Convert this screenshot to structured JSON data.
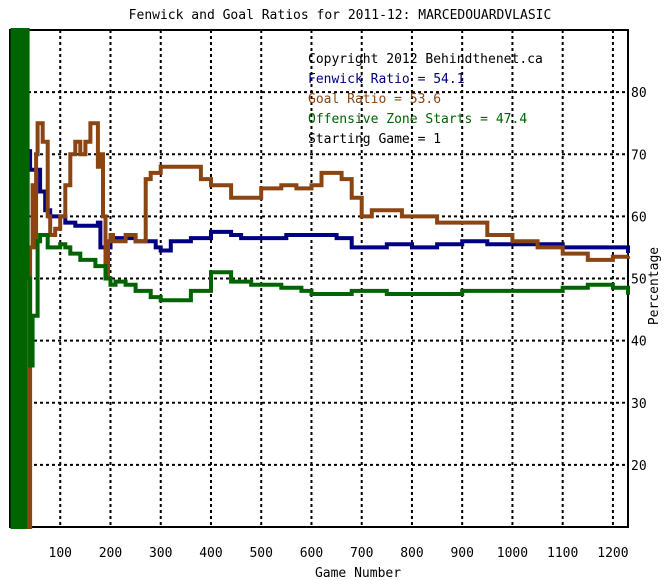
{
  "chart_data": {
    "type": "line",
    "title": "Fenwick and Goal Ratios for 2011-12: MARCEDOUARDVLASIC",
    "xlabel": "Game Number",
    "ylabel": "Percentage",
    "xlim": [
      0,
      1230
    ],
    "ylim": [
      10,
      90
    ],
    "x_ticks": [
      100,
      200,
      300,
      400,
      500,
      600,
      700,
      800,
      900,
      1000,
      1100,
      1200
    ],
    "y_ticks": [
      20,
      30,
      40,
      50,
      60,
      70,
      80
    ],
    "grid": true,
    "legend_position": "top-right",
    "legend": {
      "copyright": "Copyright 2012 Behindthenet.ca",
      "fenwick": "Fenwick Ratio = 54.1",
      "goal": "Goal Ratio = 53.6",
      "ozone": "Offensive Zone Starts = 47.4",
      "start": "Starting Game = 1"
    },
    "colors": {
      "fenwick": "#000080",
      "goal": "#8B4513",
      "ozone": "#006400",
      "text": "#000000"
    },
    "series": [
      {
        "key": "fenwick",
        "x": [
          1,
          20,
          40,
          55,
          60,
          70,
          80,
          100,
          110,
          130,
          150,
          175,
          180,
          195,
          200,
          220,
          250,
          275,
          290,
          300,
          320,
          340,
          360,
          400,
          440,
          460,
          500,
          550,
          600,
          650,
          680,
          700,
          750,
          800,
          850,
          900,
          950,
          1000,
          1050,
          1100,
          1150,
          1200,
          1230
        ],
        "values": [
          70.5,
          70.5,
          67.5,
          67.5,
          64,
          61,
          60,
          60,
          59,
          58.5,
          58.5,
          59,
          55,
          55,
          56.5,
          56.5,
          56,
          56,
          55,
          54.5,
          56,
          56,
          56.5,
          57.5,
          57,
          56.5,
          56.5,
          57,
          57,
          56.5,
          55,
          55,
          55.5,
          55,
          55.5,
          56,
          55.5,
          55.5,
          55.5,
          55,
          55,
          55,
          54.1
        ]
      },
      {
        "key": "goal",
        "x": [
          1,
          20,
          35,
          40,
          45,
          50,
          52,
          55,
          65,
          75,
          80,
          90,
          100,
          110,
          120,
          130,
          140,
          150,
          160,
          170,
          175,
          180,
          185,
          190,
          195,
          200,
          205,
          210,
          230,
          250,
          265,
          270,
          280,
          300,
          320,
          350,
          380,
          400,
          440,
          470,
          500,
          540,
          570,
          600,
          620,
          640,
          660,
          680,
          700,
          720,
          750,
          780,
          800,
          850,
          900,
          950,
          1000,
          1050,
          1100,
          1150,
          1200,
          1230
        ],
        "values": [
          70,
          70,
          10,
          55,
          65,
          55,
          70,
          75,
          72,
          60,
          57,
          58,
          60,
          65,
          70,
          72,
          70,
          72,
          75,
          75,
          68,
          70,
          60,
          50,
          56,
          57,
          56,
          56,
          57,
          56,
          56,
          66,
          67,
          68,
          68,
          68,
          66,
          65,
          63,
          63,
          64.5,
          65,
          64.5,
          65,
          67,
          67,
          66,
          63,
          60,
          61,
          61,
          60,
          60,
          59,
          59,
          57,
          56,
          55,
          54,
          53,
          53.5,
          53.6
        ]
      },
      {
        "key": "ozone",
        "x": [
          1,
          5,
          10,
          15,
          20,
          25,
          30,
          35,
          40,
          45,
          50,
          55,
          60,
          65,
          75,
          85,
          90,
          100,
          110,
          120,
          130,
          140,
          150,
          160,
          170,
          175,
          180,
          190,
          200,
          210,
          230,
          250,
          280,
          300,
          330,
          360,
          400,
          420,
          440,
          480,
          500,
          540,
          580,
          600,
          640,
          680,
          700,
          750,
          800,
          850,
          900,
          950,
          1000,
          1050,
          1100,
          1150,
          1200,
          1230
        ],
        "values": [
          90,
          10,
          90,
          10,
          90,
          10,
          90,
          50,
          36,
          44,
          44,
          56,
          57,
          57,
          55,
          55,
          55,
          55.5,
          55,
          54,
          54,
          53,
          53,
          53,
          52,
          52,
          52,
          50,
          49,
          49.5,
          49,
          48,
          47,
          46.5,
          46.5,
          48,
          51,
          51,
          49.5,
          49,
          49,
          48.5,
          48,
          47.5,
          47.5,
          48,
          48,
          47.5,
          47.5,
          47.5,
          48,
          48,
          48,
          48,
          48.5,
          49,
          48.5,
          47.4
        ]
      }
    ]
  }
}
